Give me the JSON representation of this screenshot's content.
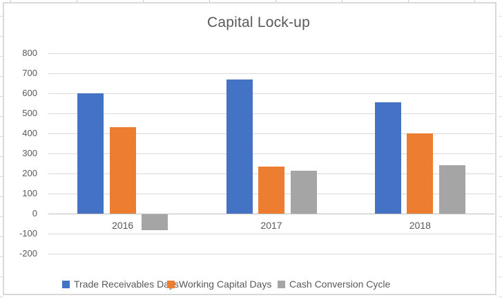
{
  "chart_data": {
    "type": "bar",
    "title": "Capital Lock-up",
    "categories": [
      "2016",
      "2017",
      "2018"
    ],
    "series": [
      {
        "name": "Trade Receivables Days",
        "color": "#4472C4",
        "values": [
          600,
          670,
          555
        ]
      },
      {
        "name": "Working Capital Days",
        "color": "#ED7D31",
        "values": [
          430,
          235,
          400
        ]
      },
      {
        "name": "Cash Conversion Cycle",
        "color": "#A5A5A5",
        "values": [
          -80,
          215,
          240
        ]
      }
    ],
    "ylim": [
      -200,
      800
    ],
    "ytick_step": 100,
    "grid": true,
    "legend_position": "bottom",
    "xlabel": "",
    "ylabel": ""
  },
  "colors": {
    "text": "#595959",
    "gridline": "#D9D9D9",
    "axis_line": "#BFBFBF",
    "chart_border": "#D9D9D9",
    "background": "#FFFFFF"
  }
}
